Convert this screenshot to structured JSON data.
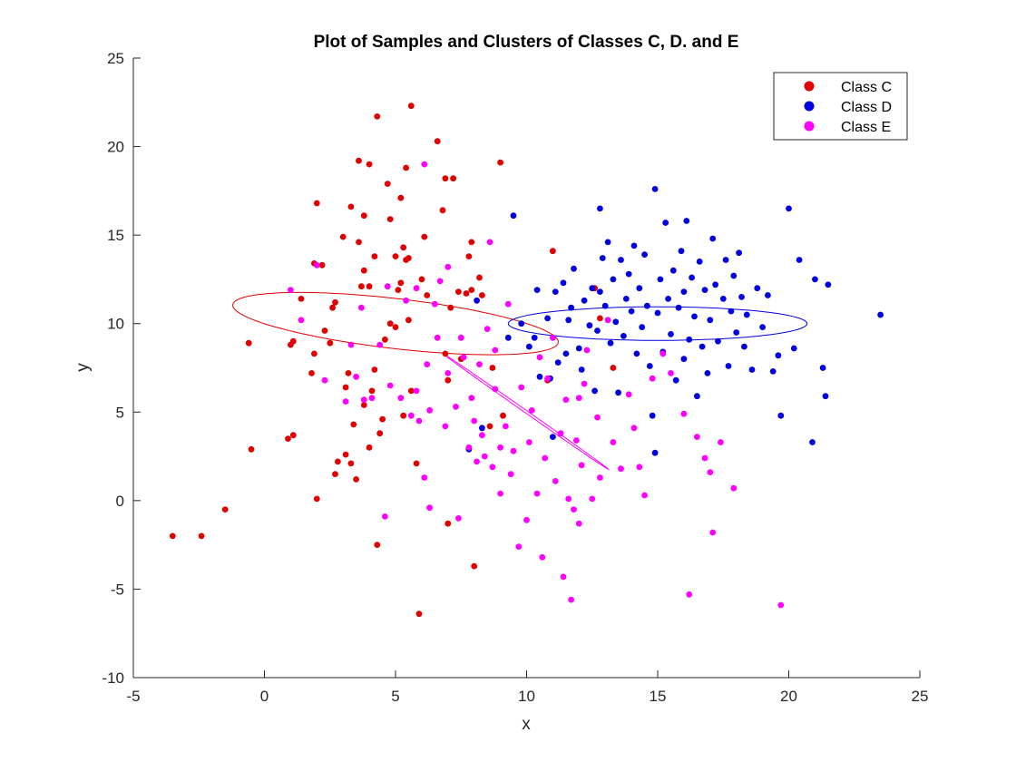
{
  "chart_data": {
    "type": "scatter",
    "title": "Plot of Samples and Clusters of Classes C, D. and E",
    "xlabel": "x",
    "ylabel": "y",
    "xlim": [
      -5,
      25
    ],
    "ylim": [
      -10,
      25
    ],
    "xticks": [
      -5,
      0,
      5,
      10,
      15,
      20,
      25
    ],
    "yticks": [
      -10,
      -5,
      0,
      5,
      10,
      15,
      20,
      25
    ],
    "grid": false,
    "legend_position": "top-right",
    "series": [
      {
        "name": "Class C",
        "color": "#e00000",
        "points": [
          [
            -3.5,
            -2.0
          ],
          [
            -2.4,
            -2.0
          ],
          [
            -1.5,
            -0.5
          ],
          [
            -0.6,
            8.9
          ],
          [
            -0.5,
            2.9
          ],
          [
            0.9,
            3.5
          ],
          [
            1.0,
            8.8
          ],
          [
            1.1,
            3.7
          ],
          [
            1.1,
            9.0
          ],
          [
            1.4,
            11.4
          ],
          [
            1.8,
            7.2
          ],
          [
            1.9,
            8.3
          ],
          [
            1.9,
            13.4
          ],
          [
            2.0,
            0.1
          ],
          [
            2.0,
            16.8
          ],
          [
            2.2,
            13.3
          ],
          [
            2.3,
            9.6
          ],
          [
            2.5,
            8.9
          ],
          [
            2.6,
            10.9
          ],
          [
            2.7,
            1.5
          ],
          [
            2.7,
            11.2
          ],
          [
            2.8,
            2.2
          ],
          [
            3.0,
            14.9
          ],
          [
            3.1,
            2.6
          ],
          [
            3.1,
            6.4
          ],
          [
            3.2,
            7.2
          ],
          [
            3.3,
            16.6
          ],
          [
            3.3,
            2.1
          ],
          [
            3.4,
            4.3
          ],
          [
            3.5,
            1.2
          ],
          [
            3.6,
            14.6
          ],
          [
            3.6,
            19.2
          ],
          [
            3.7,
            12.1
          ],
          [
            3.8,
            13.0
          ],
          [
            3.8,
            16.1
          ],
          [
            3.8,
            5.4
          ],
          [
            4.0,
            3.0
          ],
          [
            4.0,
            12.1
          ],
          [
            4.0,
            19.0
          ],
          [
            4.1,
            6.2
          ],
          [
            4.2,
            13.8
          ],
          [
            4.2,
            7.4
          ],
          [
            4.3,
            -2.5
          ],
          [
            4.3,
            21.7
          ],
          [
            4.4,
            3.8
          ],
          [
            4.5,
            4.6
          ],
          [
            4.6,
            9.1
          ],
          [
            4.7,
            17.9
          ],
          [
            4.8,
            10.0
          ],
          [
            4.8,
            15.9
          ],
          [
            5.0,
            9.8
          ],
          [
            5.0,
            13.8
          ],
          [
            5.1,
            11.9
          ],
          [
            5.2,
            17.1
          ],
          [
            5.2,
            12.3
          ],
          [
            5.3,
            14.3
          ],
          [
            5.3,
            4.8
          ],
          [
            5.4,
            18.8
          ],
          [
            5.4,
            13.6
          ],
          [
            5.5,
            13.7
          ],
          [
            5.5,
            10.2
          ],
          [
            5.6,
            22.3
          ],
          [
            5.6,
            6.2
          ],
          [
            5.8,
            2.1
          ],
          [
            5.9,
            -6.4
          ],
          [
            6.0,
            12.5
          ],
          [
            6.1,
            14.9
          ],
          [
            6.2,
            11.6
          ],
          [
            6.6,
            20.3
          ],
          [
            6.8,
            16.4
          ],
          [
            6.9,
            8.3
          ],
          [
            6.9,
            18.2
          ],
          [
            7.0,
            -1.3
          ],
          [
            7.0,
            6.8
          ],
          [
            7.1,
            10.9
          ],
          [
            7.2,
            18.2
          ],
          [
            7.4,
            11.8
          ],
          [
            7.5,
            8.0
          ],
          [
            7.7,
            11.7
          ],
          [
            7.8,
            13.8
          ],
          [
            7.9,
            11.9
          ],
          [
            7.9,
            14.6
          ],
          [
            8.0,
            -3.7
          ],
          [
            8.2,
            12.6
          ],
          [
            8.3,
            11.6
          ],
          [
            8.6,
            4.2
          ],
          [
            8.7,
            7.5
          ],
          [
            9.0,
            19.1
          ],
          [
            9.1,
            4.8
          ],
          [
            10.8,
            6.8
          ],
          [
            11.0,
            14.1
          ],
          [
            12.6,
            12.0
          ],
          [
            12.8,
            10.3
          ],
          [
            13.3,
            7.5
          ]
        ]
      },
      {
        "name": "Class D",
        "color": "#0000e0",
        "points": [
          [
            7.8,
            2.9
          ],
          [
            8.1,
            11.3
          ],
          [
            8.3,
            4.1
          ],
          [
            9.3,
            9.2
          ],
          [
            9.5,
            16.1
          ],
          [
            9.8,
            10.0
          ],
          [
            10.1,
            8.7
          ],
          [
            10.3,
            9.2
          ],
          [
            10.4,
            11.9
          ],
          [
            10.5,
            7.0
          ],
          [
            10.8,
            10.3
          ],
          [
            10.9,
            6.9
          ],
          [
            11.0,
            3.6
          ],
          [
            11.1,
            11.8
          ],
          [
            11.2,
            7.8
          ],
          [
            11.4,
            12.3
          ],
          [
            11.5,
            8.3
          ],
          [
            11.6,
            10.2
          ],
          [
            11.7,
            10.9
          ],
          [
            11.8,
            13.1
          ],
          [
            12.0,
            8.6
          ],
          [
            12.1,
            7.4
          ],
          [
            12.2,
            11.3
          ],
          [
            12.4,
            9.9
          ],
          [
            12.5,
            12.0
          ],
          [
            12.6,
            6.2
          ],
          [
            12.7,
            9.6
          ],
          [
            12.8,
            11.8
          ],
          [
            12.8,
            16.5
          ],
          [
            12.9,
            13.7
          ],
          [
            13.0,
            11.0
          ],
          [
            13.1,
            14.6
          ],
          [
            13.2,
            8.9
          ],
          [
            13.3,
            12.5
          ],
          [
            13.4,
            10.1
          ],
          [
            13.5,
            6.1
          ],
          [
            13.6,
            13.6
          ],
          [
            13.7,
            9.3
          ],
          [
            13.8,
            11.4
          ],
          [
            13.9,
            12.8
          ],
          [
            14.0,
            10.7
          ],
          [
            14.1,
            14.4
          ],
          [
            14.2,
            8.3
          ],
          [
            14.3,
            12.0
          ],
          [
            14.4,
            9.8
          ],
          [
            14.5,
            13.9
          ],
          [
            14.6,
            11.0
          ],
          [
            14.7,
            7.6
          ],
          [
            14.8,
            4.8
          ],
          [
            14.9,
            17.6
          ],
          [
            14.9,
            2.7
          ],
          [
            15.0,
            10.6
          ],
          [
            15.1,
            12.5
          ],
          [
            15.2,
            8.4
          ],
          [
            15.3,
            15.7
          ],
          [
            15.4,
            11.4
          ],
          [
            15.5,
            9.4
          ],
          [
            15.6,
            13.0
          ],
          [
            15.7,
            6.8
          ],
          [
            15.8,
            10.9
          ],
          [
            15.9,
            14.1
          ],
          [
            16.0,
            8.0
          ],
          [
            16.0,
            11.8
          ],
          [
            16.1,
            15.8
          ],
          [
            16.2,
            9.1
          ],
          [
            16.3,
            12.6
          ],
          [
            16.4,
            10.4
          ],
          [
            16.5,
            5.9
          ],
          [
            16.6,
            13.5
          ],
          [
            16.7,
            8.7
          ],
          [
            16.8,
            11.9
          ],
          [
            16.9,
            7.2
          ],
          [
            17.0,
            10.2
          ],
          [
            17.1,
            14.8
          ],
          [
            17.2,
            12.2
          ],
          [
            17.3,
            9.0
          ],
          [
            17.5,
            11.4
          ],
          [
            17.6,
            13.6
          ],
          [
            17.7,
            7.6
          ],
          [
            17.8,
            10.7
          ],
          [
            17.9,
            12.7
          ],
          [
            18.0,
            9.5
          ],
          [
            18.1,
            14.0
          ],
          [
            18.2,
            11.5
          ],
          [
            18.3,
            8.7
          ],
          [
            18.4,
            10.5
          ],
          [
            18.6,
            7.4
          ],
          [
            18.8,
            12.0
          ],
          [
            19.0,
            9.8
          ],
          [
            19.2,
            11.6
          ],
          [
            19.4,
            7.3
          ],
          [
            19.6,
            8.2
          ],
          [
            19.7,
            4.8
          ],
          [
            20.0,
            16.5
          ],
          [
            20.2,
            8.6
          ],
          [
            20.4,
            13.6
          ],
          [
            20.9,
            3.3
          ],
          [
            21.0,
            12.5
          ],
          [
            21.3,
            7.5
          ],
          [
            21.4,
            5.9
          ],
          [
            21.5,
            12.2
          ],
          [
            23.5,
            10.5
          ]
        ]
      },
      {
        "name": "Class E",
        "color": "#ff00ff",
        "points": [
          [
            1.0,
            11.9
          ],
          [
            1.4,
            10.2
          ],
          [
            2.0,
            13.3
          ],
          [
            2.3,
            6.8
          ],
          [
            3.1,
            5.6
          ],
          [
            3.3,
            8.8
          ],
          [
            3.5,
            7.0
          ],
          [
            3.7,
            10.9
          ],
          [
            3.8,
            5.7
          ],
          [
            4.1,
            5.8
          ],
          [
            4.4,
            8.8
          ],
          [
            4.6,
            -0.9
          ],
          [
            4.7,
            12.1
          ],
          [
            4.8,
            6.5
          ],
          [
            5.2,
            5.8
          ],
          [
            5.4,
            11.3
          ],
          [
            5.6,
            4.8
          ],
          [
            5.8,
            12.0
          ],
          [
            5.8,
            6.2
          ],
          [
            5.9,
            4.5
          ],
          [
            6.1,
            1.3
          ],
          [
            6.1,
            19.0
          ],
          [
            6.2,
            7.7
          ],
          [
            6.3,
            -0.4
          ],
          [
            6.3,
            5.1
          ],
          [
            6.5,
            11.1
          ],
          [
            6.6,
            9.2
          ],
          [
            6.7,
            12.4
          ],
          [
            6.9,
            4.2
          ],
          [
            7.0,
            7.2
          ],
          [
            7.0,
            13.2
          ],
          [
            7.3,
            5.3
          ],
          [
            7.4,
            -1.0
          ],
          [
            7.5,
            9.2
          ],
          [
            7.6,
            8.1
          ],
          [
            7.8,
            3.0
          ],
          [
            7.9,
            5.8
          ],
          [
            8.0,
            4.5
          ],
          [
            8.1,
            2.2
          ],
          [
            8.2,
            7.7
          ],
          [
            8.3,
            3.7
          ],
          [
            8.4,
            2.5
          ],
          [
            8.5,
            9.7
          ],
          [
            8.6,
            14.6
          ],
          [
            8.7,
            1.9
          ],
          [
            8.8,
            8.5
          ],
          [
            8.8,
            6.3
          ],
          [
            9.0,
            0.4
          ],
          [
            9.0,
            3.0
          ],
          [
            9.2,
            4.2
          ],
          [
            9.3,
            11.1
          ],
          [
            9.4,
            1.5
          ],
          [
            9.5,
            2.8
          ],
          [
            9.7,
            -2.6
          ],
          [
            9.8,
            6.4
          ],
          [
            10.0,
            -1.1
          ],
          [
            10.1,
            3.3
          ],
          [
            10.2,
            5.1
          ],
          [
            10.4,
            0.4
          ],
          [
            10.5,
            8.1
          ],
          [
            10.6,
            -3.2
          ],
          [
            10.7,
            2.4
          ],
          [
            10.8,
            6.9
          ],
          [
            11.0,
            9.2
          ],
          [
            11.1,
            1.1
          ],
          [
            11.3,
            3.8
          ],
          [
            11.4,
            -4.3
          ],
          [
            11.5,
            5.7
          ],
          [
            11.6,
            0.1
          ],
          [
            11.7,
            -5.6
          ],
          [
            11.8,
            -0.5
          ],
          [
            11.9,
            3.4
          ],
          [
            12.0,
            5.8
          ],
          [
            12.0,
            -1.3
          ],
          [
            12.1,
            2.0
          ],
          [
            12.2,
            6.6
          ],
          [
            12.3,
            8.5
          ],
          [
            12.5,
            0.1
          ],
          [
            12.7,
            4.7
          ],
          [
            12.8,
            1.3
          ],
          [
            13.1,
            10.2
          ],
          [
            13.3,
            3.3
          ],
          [
            13.6,
            1.8
          ],
          [
            13.9,
            6.0
          ],
          [
            14.1,
            4.1
          ],
          [
            14.3,
            1.9
          ],
          [
            14.5,
            0.3
          ],
          [
            14.8,
            6.9
          ],
          [
            15.2,
            8.3
          ],
          [
            15.5,
            7.2
          ],
          [
            16.0,
            4.9
          ],
          [
            16.2,
            -5.3
          ],
          [
            16.5,
            3.6
          ],
          [
            16.8,
            2.4
          ],
          [
            17.0,
            1.6
          ],
          [
            17.1,
            -1.8
          ],
          [
            17.4,
            3.3
          ],
          [
            17.9,
            0.7
          ],
          [
            19.7,
            -5.9
          ]
        ]
      }
    ],
    "clusters": [
      {
        "series": "Class C",
        "color": "#e00000",
        "center": [
          5.0,
          10.0
        ],
        "rx": 1.4,
        "ry": 6.3,
        "angle": 80
      },
      {
        "series": "Class D",
        "color": "#0000e0",
        "center": [
          15.0,
          10.0
        ],
        "rx": 5.7,
        "ry": 0.95,
        "angle": 0
      },
      {
        "series": "Class E",
        "color": "#ff00ff",
        "center": [
          10.0,
          5.0
        ],
        "rx": 4.5,
        "ry": 0.06,
        "angle": -46
      }
    ]
  }
}
